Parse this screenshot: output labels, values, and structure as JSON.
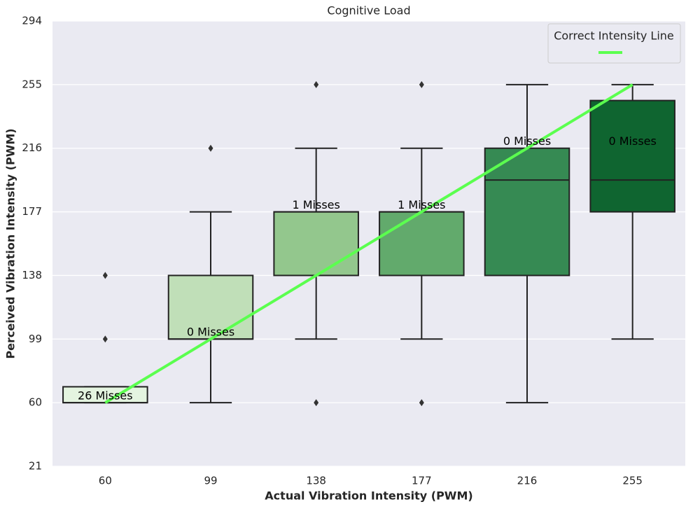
{
  "chart_data": {
    "type": "box",
    "title": "Cognitive Load",
    "x_label": "Actual Vibration Intensity (PWM)",
    "y_label": "Perceived Vibration Intensity (PWM)",
    "categories": [
      "60",
      "99",
      "138",
      "177",
      "216",
      "255"
    ],
    "boxes": [
      {
        "color": "#e4f4e0",
        "whisker_low": 60,
        "q1": 60,
        "median": 60,
        "q3": 69.75,
        "whisker_high": 69.75,
        "outliers": [
          99,
          138
        ]
      },
      {
        "color": "#c0dfb8",
        "whisker_low": 60,
        "q1": 99,
        "median": 99,
        "q3": 138,
        "whisker_high": 177,
        "outliers": [
          216
        ]
      },
      {
        "color": "#93c78d",
        "whisker_low": 99,
        "q1": 138,
        "median": 177,
        "q3": 177,
        "whisker_high": 216,
        "outliers": [
          60,
          255
        ]
      },
      {
        "color": "#62aa6c",
        "whisker_low": 99,
        "q1": 138,
        "median": 177,
        "q3": 177,
        "whisker_high": 216,
        "outliers": [
          60,
          255
        ]
      },
      {
        "color": "#368a53",
        "whisker_low": 60,
        "q1": 138,
        "median": 196.5,
        "q3": 216,
        "whisker_high": 255,
        "outliers": []
      },
      {
        "color": "#0f6530",
        "whisker_low": 99,
        "q1": 177,
        "median": 196.5,
        "q3": 245.25,
        "whisker_high": 255,
        "outliers": []
      }
    ],
    "annotations": [
      {
        "text": "26 Misses",
        "x": "60",
        "y": 64
      },
      {
        "text": "0 Misses",
        "x": "99",
        "y": 103
      },
      {
        "text": "1 Misses",
        "x": "138",
        "y": 181
      },
      {
        "text": "1 Misses",
        "x": "177",
        "y": 181
      },
      {
        "text": "0 Misses",
        "x": "216",
        "y": 220
      },
      {
        "text": "0 Misses",
        "x": "255",
        "y": 220
      }
    ],
    "reference_line": {
      "name": "Correct Intensity Line",
      "color": "#5bff4f",
      "x": [
        "60",
        "255"
      ],
      "y": [
        60,
        255
      ]
    },
    "ylim": [
      21,
      294
    ],
    "yticks": [
      21,
      60,
      99,
      138,
      177,
      216,
      255,
      294
    ],
    "grid": true,
    "legend_position": "upper right"
  }
}
